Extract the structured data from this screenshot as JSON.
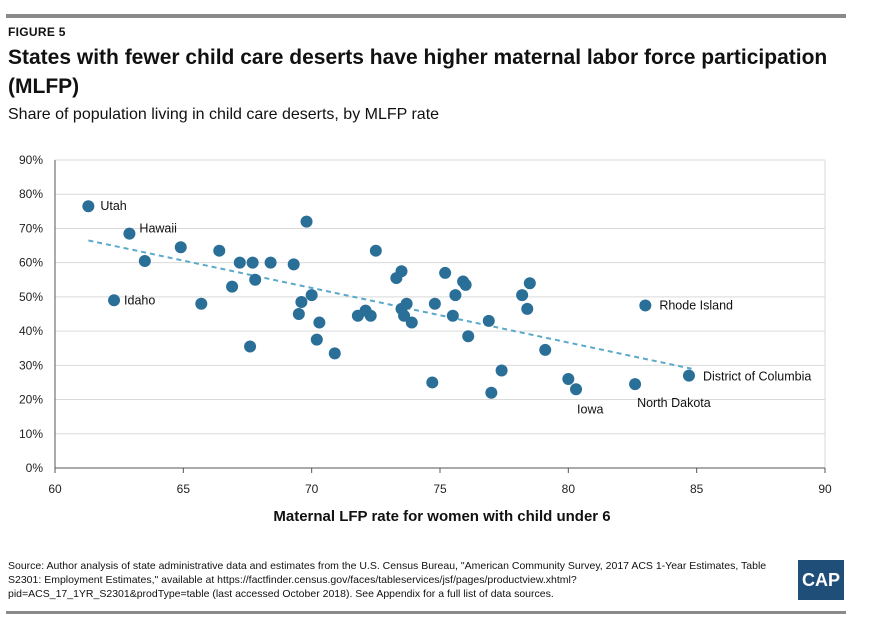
{
  "figure_label": "FIGURE 5",
  "title": "States with fewer child care deserts have higher maternal labor force participation (MLFP)",
  "subtitle": "Share of population living in child care deserts, by MLFP rate",
  "source": "Source: Author analysis of state administrative data and estimates from the U.S. Census Bureau, \"American Community Survey, 2017 ACS 1-Year Estimates, Table S2301: Employment Estimates,\" available at https://factfinder.census.gov/faces/tableservices/jsf/pages/productview.xhtml?pid=ACS_17_1YR_S2301&prodType=table (last accessed October 2018). See Appendix for a full list of data sources.",
  "logo": "CAP",
  "colors": {
    "point": "#2a6f97",
    "trendline": "#5aa9c9",
    "grid": "#d9d9d9",
    "rules": "#8a8a8a",
    "logo_bg": "#1f4e79"
  },
  "chart_data": {
    "type": "scatter",
    "xlabel": "Maternal LFP rate for women with child under 6",
    "ylabel": "",
    "xlim": [
      60,
      90
    ],
    "ylim": [
      0,
      0.9
    ],
    "x_ticks": [
      "60",
      "65",
      "70",
      "75",
      "80",
      "85",
      "90"
    ],
    "y_ticks": [
      "0%",
      "10%",
      "20%",
      "30%",
      "40%",
      "50%",
      "60%",
      "70%",
      "80%",
      "90%"
    ],
    "grid": "horizontal",
    "trendline": {
      "style": "dashed",
      "start": [
        61.3,
        0.665
      ],
      "end": [
        84.8,
        0.29
      ]
    },
    "points": [
      {
        "x": 61.3,
        "y": 0.765,
        "label": "Utah"
      },
      {
        "x": 62.9,
        "y": 0.685,
        "label": "Hawaii"
      },
      {
        "x": 62.3,
        "y": 0.49,
        "label": "Idaho"
      },
      {
        "x": 83.0,
        "y": 0.475,
        "label": "Rhode Island"
      },
      {
        "x": 84.7,
        "y": 0.27,
        "label": "District of Columbia"
      },
      {
        "x": 82.6,
        "y": 0.245,
        "label": "North Dakota"
      },
      {
        "x": 80.3,
        "y": 0.23,
        "label": "Iowa"
      },
      {
        "x": 63.5,
        "y": 0.605
      },
      {
        "x": 64.9,
        "y": 0.645
      },
      {
        "x": 65.7,
        "y": 0.48
      },
      {
        "x": 66.4,
        "y": 0.635
      },
      {
        "x": 66.9,
        "y": 0.53
      },
      {
        "x": 67.2,
        "y": 0.6
      },
      {
        "x": 67.6,
        "y": 0.355
      },
      {
        "x": 67.7,
        "y": 0.6
      },
      {
        "x": 67.8,
        "y": 0.55
      },
      {
        "x": 68.4,
        "y": 0.6
      },
      {
        "x": 69.3,
        "y": 0.595
      },
      {
        "x": 69.5,
        "y": 0.45
      },
      {
        "x": 69.6,
        "y": 0.485
      },
      {
        "x": 69.8,
        "y": 0.72
      },
      {
        "x": 70.0,
        "y": 0.505
      },
      {
        "x": 70.2,
        "y": 0.375
      },
      {
        "x": 70.3,
        "y": 0.425
      },
      {
        "x": 70.9,
        "y": 0.335
      },
      {
        "x": 71.8,
        "y": 0.445
      },
      {
        "x": 72.1,
        "y": 0.46
      },
      {
        "x": 72.3,
        "y": 0.445
      },
      {
        "x": 72.5,
        "y": 0.635
      },
      {
        "x": 73.3,
        "y": 0.555
      },
      {
        "x": 73.5,
        "y": 0.575
      },
      {
        "x": 73.5,
        "y": 0.465
      },
      {
        "x": 73.6,
        "y": 0.445
      },
      {
        "x": 73.7,
        "y": 0.48
      },
      {
        "x": 73.9,
        "y": 0.425
      },
      {
        "x": 74.7,
        "y": 0.25
      },
      {
        "x": 74.8,
        "y": 0.48
      },
      {
        "x": 75.2,
        "y": 0.57
      },
      {
        "x": 75.5,
        "y": 0.445
      },
      {
        "x": 75.6,
        "y": 0.505
      },
      {
        "x": 75.9,
        "y": 0.545
      },
      {
        "x": 76.0,
        "y": 0.535
      },
      {
        "x": 76.1,
        "y": 0.385
      },
      {
        "x": 76.9,
        "y": 0.43
      },
      {
        "x": 77.0,
        "y": 0.22
      },
      {
        "x": 77.4,
        "y": 0.285
      },
      {
        "x": 78.2,
        "y": 0.505
      },
      {
        "x": 78.4,
        "y": 0.465
      },
      {
        "x": 78.5,
        "y": 0.54
      },
      {
        "x": 79.1,
        "y": 0.345
      },
      {
        "x": 80.0,
        "y": 0.26
      }
    ]
  }
}
